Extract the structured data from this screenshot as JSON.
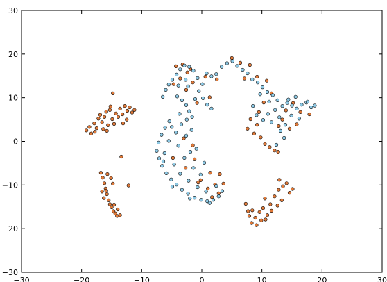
{
  "chart_data": {
    "type": "scatter",
    "title": "",
    "xlabel": "",
    "ylabel": "",
    "xlim": [
      -30,
      30
    ],
    "ylim": [
      -30,
      30
    ],
    "x_ticks": [
      -30,
      -20,
      -10,
      0,
      10,
      20,
      30
    ],
    "y_ticks": [
      -30,
      -20,
      -10,
      0,
      10,
      20,
      30
    ],
    "grid": false,
    "legend": "none",
    "series": [
      {
        "color": "#e07a3a",
        "edgecolor": "#000000",
        "points": [
          [
            -19.2,
            2.5
          ],
          [
            -18.7,
            3.3
          ],
          [
            -18.4,
            1.8
          ],
          [
            -17.9,
            4.1
          ],
          [
            -17.5,
            3.0
          ],
          [
            -17.2,
            5.2
          ],
          [
            -16.9,
            6.1
          ],
          [
            -16.6,
            4.4
          ],
          [
            -16.2,
            5.6
          ],
          [
            -15.9,
            6.8
          ],
          [
            -15.6,
            3.7
          ],
          [
            -15.3,
            7.2
          ],
          [
            -14.9,
            5.1
          ],
          [
            -14.6,
            4.0
          ],
          [
            -14.3,
            6.4
          ],
          [
            -13.9,
            5.6
          ],
          [
            -13.6,
            7.5
          ],
          [
            -13.2,
            6.2
          ],
          [
            -12.8,
            8.1
          ],
          [
            -12.4,
            7.0
          ],
          [
            -12.0,
            7.8
          ],
          [
            -11.6,
            6.6
          ],
          [
            -11.2,
            7.2
          ],
          [
            -14.8,
            11.0
          ],
          [
            -17.8,
            2.2
          ],
          [
            -16.4,
            2.8
          ],
          [
            -15.8,
            2.4
          ],
          [
            -13.1,
            4.1
          ],
          [
            -12.5,
            5.0
          ],
          [
            -15.2,
            8.0
          ],
          [
            -13.4,
            -3.5
          ],
          [
            -16.8,
            -7.2
          ],
          [
            -16.5,
            -8.3
          ],
          [
            -16.2,
            -9.6
          ],
          [
            -16.0,
            -10.8
          ],
          [
            -15.8,
            -12.1
          ],
          [
            -15.5,
            -13.5
          ],
          [
            -15.3,
            -14.4
          ],
          [
            -15.0,
            -15.1
          ],
          [
            -14.7,
            -16.0
          ],
          [
            -14.4,
            -16.5
          ],
          [
            -14.1,
            -17.1
          ],
          [
            -15.7,
            -7.5
          ],
          [
            -15.1,
            -8.4
          ],
          [
            -14.8,
            -9.7
          ],
          [
            -15.9,
            -11.3
          ],
          [
            -16.3,
            -13.0
          ],
          [
            -14.6,
            -14.5
          ],
          [
            -14.0,
            -15.6
          ],
          [
            -12.2,
            -10.1
          ],
          [
            -13.6,
            -16.9
          ],
          [
            -16.6,
            -11.5
          ],
          [
            -4.3,
            17.2
          ],
          [
            -3.2,
            17.6
          ],
          [
            -2.4,
            15.8
          ],
          [
            -1.9,
            16.6
          ],
          [
            -3.6,
            14.4
          ],
          [
            -4.7,
            13.1
          ],
          [
            -2.6,
            11.8
          ],
          [
            -1.5,
            13.5
          ],
          [
            0.6,
            14.8
          ],
          [
            2.5,
            14.2
          ],
          [
            -0.8,
            8.8
          ],
          [
            1.3,
            10.1
          ],
          [
            -3.0,
            0.7
          ],
          [
            -1.5,
            -0.9
          ],
          [
            -4.8,
            -3.8
          ],
          [
            -1.2,
            -4.1
          ],
          [
            -2.7,
            -6.1
          ],
          [
            -0.6,
            -9.4
          ],
          [
            1.0,
            -10.8
          ],
          [
            1.7,
            -12.8
          ],
          [
            3.0,
            -7.5
          ],
          [
            3.6,
            -9.7
          ],
          [
            2.2,
            -9.9
          ],
          [
            -0.2,
            -8.9
          ],
          [
            1.4,
            -7.2
          ],
          [
            2.8,
            -11.9
          ],
          [
            5.0,
            19.1
          ],
          [
            6.4,
            18.0
          ],
          [
            8.0,
            17.5
          ],
          [
            7.1,
            14.4
          ],
          [
            9.2,
            14.8
          ],
          [
            10.8,
            13.9
          ],
          [
            11.6,
            11.0
          ],
          [
            10.3,
            8.9
          ],
          [
            9.5,
            6.7
          ],
          [
            8.1,
            5.1
          ],
          [
            7.6,
            2.9
          ],
          [
            8.7,
            1.8
          ],
          [
            9.8,
            0.9
          ],
          [
            10.5,
            -0.6
          ],
          [
            11.3,
            -1.3
          ],
          [
            12.1,
            -2.1
          ],
          [
            12.7,
            -2.4
          ],
          [
            13.4,
            5.0
          ],
          [
            14.0,
            7.1
          ],
          [
            15.2,
            8.8
          ],
          [
            16.4,
            6.7
          ],
          [
            17.9,
            6.2
          ],
          [
            14.6,
            2.9
          ],
          [
            15.8,
            3.9
          ],
          [
            12.8,
            3.5
          ],
          [
            9.2,
            3.8
          ],
          [
            7.7,
            -16.0
          ],
          [
            7.9,
            -17.1
          ],
          [
            8.3,
            -18.7
          ],
          [
            8.9,
            -17.5
          ],
          [
            9.6,
            -16.2
          ],
          [
            10.2,
            -15.3
          ],
          [
            10.6,
            -17.9
          ],
          [
            9.1,
            -19.2
          ],
          [
            8.4,
            -15.8
          ],
          [
            11.4,
            -14.4
          ],
          [
            12.1,
            -12.6
          ],
          [
            12.8,
            -11.1
          ],
          [
            13.5,
            -10.3
          ],
          [
            14.1,
            -9.6
          ],
          [
            14.6,
            -11.8
          ],
          [
            13.3,
            -13.5
          ],
          [
            12.6,
            -14.7
          ],
          [
            11.6,
            -15.9
          ],
          [
            15.1,
            -10.9
          ],
          [
            10.9,
            -16.9
          ],
          [
            7.3,
            -14.3
          ],
          [
            12.9,
            -8.8
          ],
          [
            10.5,
            -13.1
          ],
          [
            9.9,
            -18.1
          ]
        ]
      },
      {
        "color": "#8ecae6",
        "edgecolor": "#000000",
        "points": [
          [
            -6.5,
            10.2
          ],
          [
            -6.0,
            11.8
          ],
          [
            -5.5,
            13.0
          ],
          [
            -4.9,
            14.1
          ],
          [
            -4.2,
            15.3
          ],
          [
            -3.6,
            16.5
          ],
          [
            -2.9,
            17.4
          ],
          [
            -2.1,
            17.1
          ],
          [
            -1.4,
            16.2
          ],
          [
            -0.7,
            14.5
          ],
          [
            0.1,
            13.1
          ],
          [
            0.8,
            15.6
          ],
          [
            1.6,
            14.9
          ],
          [
            2.4,
            15.4
          ],
          [
            3.3,
            17.1
          ],
          [
            4.2,
            17.9
          ],
          [
            5.1,
            18.4
          ],
          [
            5.9,
            17.3
          ],
          [
            6.8,
            16.4
          ],
          [
            7.6,
            15.6
          ],
          [
            8.4,
            14.2
          ],
          [
            9.3,
            13.5
          ],
          [
            10.1,
            12.4
          ],
          [
            10.9,
            11.3
          ],
          [
            11.8,
            10.6
          ],
          [
            12.6,
            9.4
          ],
          [
            13.4,
            8.1
          ],
          [
            14.2,
            8.8
          ],
          [
            15.0,
            8.2
          ],
          [
            15.8,
            7.5
          ],
          [
            16.6,
            8.4
          ],
          [
            17.4,
            8.9
          ],
          [
            18.2,
            7.8
          ],
          [
            17.6,
            9.1
          ],
          [
            18.8,
            8.2
          ],
          [
            -4.1,
            10.3
          ],
          [
            -3.3,
            9.4
          ],
          [
            -2.6,
            8.3
          ],
          [
            -2.1,
            6.9
          ],
          [
            -1.6,
            5.6
          ],
          [
            -1.1,
            9.7
          ],
          [
            -0.5,
            11.5
          ],
          [
            0.2,
            9.9
          ],
          [
            0.9,
            8.4
          ],
          [
            1.6,
            7.5
          ],
          [
            -2.3,
            12.6
          ],
          [
            -3.9,
            12.8
          ],
          [
            -2.7,
            14.1
          ],
          [
            -5.4,
            4.6
          ],
          [
            -6.1,
            3.1
          ],
          [
            -6.7,
            1.5
          ],
          [
            -7.2,
            -0.3
          ],
          [
            -7.5,
            -2.2
          ],
          [
            -7.1,
            -3.9
          ],
          [
            -6.6,
            -5.6
          ],
          [
            -5.9,
            -7.3
          ],
          [
            -5.1,
            -8.7
          ],
          [
            -4.2,
            -9.9
          ],
          [
            -3.3,
            -11.1
          ],
          [
            -2.3,
            -12.0
          ],
          [
            -1.2,
            -12.9
          ],
          [
            -0.1,
            -13.4
          ],
          [
            0.9,
            -13.7
          ],
          [
            1.9,
            -13.4
          ],
          [
            2.8,
            -12.6
          ],
          [
            3.4,
            -11.4
          ],
          [
            -4.3,
            2.0
          ],
          [
            -3.4,
            3.9
          ],
          [
            -2.6,
            1.3
          ],
          [
            -1.9,
            -2.4
          ],
          [
            -4.6,
            -5.3
          ],
          [
            -3.6,
            -7.4
          ],
          [
            -2.2,
            -9.0
          ],
          [
            -0.7,
            -10.5
          ],
          [
            0.7,
            -11.5
          ],
          [
            -5.5,
            0.1
          ],
          [
            -6.2,
            -2.7
          ],
          [
            -3.9,
            -1.0
          ],
          [
            -2.9,
            -3.8
          ],
          [
            -1.4,
            -6.1
          ],
          [
            -0.2,
            -7.6
          ],
          [
            0.4,
            -4.9
          ],
          [
            -0.9,
            -1.7
          ],
          [
            -1.7,
            2.6
          ],
          [
            -2.5,
            5.0
          ],
          [
            -3.7,
            6.3
          ],
          [
            -5.0,
            3.3
          ],
          [
            -6.4,
            -4.6
          ],
          [
            -4.9,
            -10.4
          ],
          [
            -2.0,
            -13.1
          ],
          [
            1.3,
            -14.1
          ],
          [
            2.4,
            -10.2
          ],
          [
            8.5,
            8.1
          ],
          [
            9.1,
            6.0
          ],
          [
            10.2,
            4.9
          ],
          [
            11.0,
            6.3
          ],
          [
            11.6,
            4.4
          ],
          [
            12.2,
            7.2
          ],
          [
            12.9,
            5.5
          ],
          [
            13.1,
            2.4
          ],
          [
            13.7,
            0.8
          ],
          [
            12.4,
            -0.8
          ],
          [
            13.9,
            3.8
          ],
          [
            14.9,
            5.9
          ],
          [
            14.4,
            9.6
          ],
          [
            15.6,
            10.2
          ],
          [
            16.2,
            5.2
          ],
          [
            9.7,
            10.8
          ],
          [
            11.2,
            9.1
          ]
        ]
      }
    ]
  }
}
